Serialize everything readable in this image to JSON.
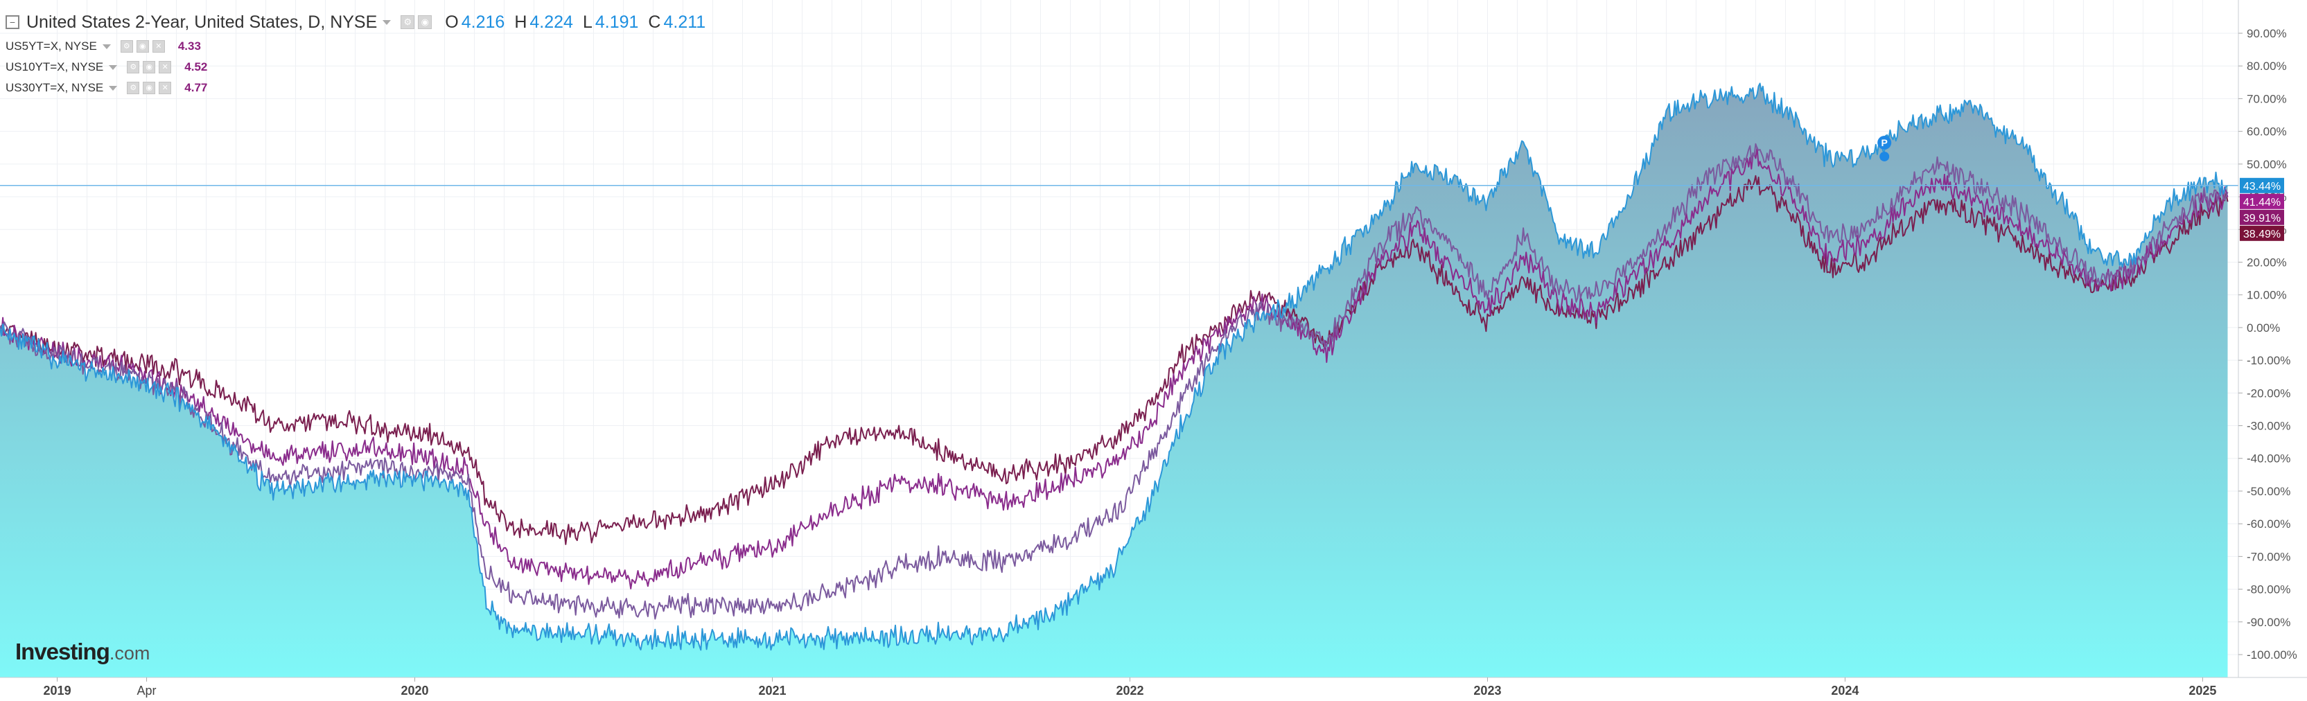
{
  "header": {
    "title": "United States 2-Year, United States, D, NYSE",
    "open_label": "O",
    "open": "4.216",
    "high_label": "H",
    "high": "4.224",
    "low_label": "L",
    "low": "4.191",
    "close_label": "C",
    "close": "4.211"
  },
  "compare": [
    {
      "label": "US5YT=X, NYSE",
      "last": "4.33",
      "color": "#8b1f7c"
    },
    {
      "label": "US10YT=X, NYSE",
      "last": "4.52",
      "color": "#8b1f7c"
    },
    {
      "label": "US30YT=X, NYSE",
      "last": "4.77",
      "color": "#8b1f7c"
    }
  ],
  "brand": {
    "name": "Investing",
    "suffix": ".com"
  },
  "colors": {
    "main_line": "#2c97d8",
    "area_top": "#86a6bd",
    "area_bottom": "#7ff8f8",
    "us5y": "#7b5a9e",
    "us10y": "#8a2c8c",
    "us30y": "#7a1f4f",
    "grid": "#eef0f4",
    "axis_text": "#555555"
  },
  "icons": [
    "collapse-icon",
    "chevron-down-icon",
    "settings-icon",
    "hide-icon",
    "close-icon",
    "pin-marker-icon"
  ],
  "chart_data": {
    "type": "area",
    "ylabel": "",
    "ylim": [
      -105,
      100
    ],
    "yticks": [
      "90.00%",
      "80.00%",
      "70.00%",
      "60.00%",
      "50.00%",
      "40.00%",
      "30.00%",
      "20.00%",
      "10.00%",
      "0.00%",
      "-10.00%",
      "-20.00%",
      "-30.00%",
      "-40.00%",
      "-50.00%",
      "-60.00%",
      "-70.00%",
      "-80.00%",
      "-90.00%",
      "-100.00%"
    ],
    "ytick_values": [
      90,
      80,
      70,
      60,
      50,
      40,
      30,
      20,
      10,
      0,
      -10,
      -20,
      -30,
      -40,
      -50,
      -60,
      -70,
      -80,
      -90,
      -100
    ],
    "xticks": [
      {
        "label": "2019",
        "t": 2019.0
      },
      {
        "label": "Apr",
        "t": 2019.25
      },
      {
        "label": "2020",
        "t": 2020.0
      },
      {
        "label": "2021",
        "t": 2021.0
      },
      {
        "label": "2022",
        "t": 2022.0
      },
      {
        "label": "2023",
        "t": 2023.0
      },
      {
        "label": "2024",
        "t": 2024.0
      },
      {
        "label": "2025",
        "t": 2025.0
      }
    ],
    "xlim": [
      2018.84,
      2025.1
    ],
    "reference_line": 43.44,
    "last_labels": [
      {
        "text": "43.44%",
        "value": 43.44,
        "color": "#1e90d6"
      },
      {
        "text": "41.44%",
        "value": 41.44,
        "color": "#a01e8e"
      },
      {
        "text": "39.91%",
        "value": 39.91,
        "color": "#8c1a6e"
      },
      {
        "text": "38.49%",
        "value": 38.49,
        "color": "#7a1238"
      }
    ],
    "series": [
      {
        "name": "United States 2-Year",
        "style": "area",
        "points": [
          [
            2018.84,
            0
          ],
          [
            2019.0,
            -10
          ],
          [
            2019.2,
            -16
          ],
          [
            2019.35,
            -22
          ],
          [
            2019.5,
            -38
          ],
          [
            2019.6,
            -50
          ],
          [
            2019.75,
            -48
          ],
          [
            2019.9,
            -46
          ],
          [
            2020.05,
            -47
          ],
          [
            2020.15,
            -50
          ],
          [
            2020.2,
            -85
          ],
          [
            2020.27,
            -92
          ],
          [
            2020.45,
            -94
          ],
          [
            2020.6,
            -95
          ],
          [
            2020.8,
            -95
          ],
          [
            2021.0,
            -95
          ],
          [
            2021.2,
            -95
          ],
          [
            2021.5,
            -94
          ],
          [
            2021.65,
            -93
          ],
          [
            2021.8,
            -86
          ],
          [
            2021.95,
            -74
          ],
          [
            2022.05,
            -55
          ],
          [
            2022.15,
            -28
          ],
          [
            2022.25,
            -8
          ],
          [
            2022.35,
            2
          ],
          [
            2022.45,
            8
          ],
          [
            2022.55,
            18
          ],
          [
            2022.7,
            35
          ],
          [
            2022.8,
            50
          ],
          [
            2022.9,
            45
          ],
          [
            2023.0,
            38
          ],
          [
            2023.1,
            58
          ],
          [
            2023.2,
            28
          ],
          [
            2023.3,
            23
          ],
          [
            2023.4,
            40
          ],
          [
            2023.5,
            65
          ],
          [
            2023.6,
            70
          ],
          [
            2023.75,
            72
          ],
          [
            2023.85,
            65
          ],
          [
            2023.95,
            52
          ],
          [
            2024.05,
            52
          ],
          [
            2024.15,
            60
          ],
          [
            2024.25,
            65
          ],
          [
            2024.35,
            68
          ],
          [
            2024.5,
            55
          ],
          [
            2024.6,
            40
          ],
          [
            2024.7,
            22
          ],
          [
            2024.8,
            20
          ],
          [
            2024.9,
            38
          ],
          [
            2025.0,
            45
          ],
          [
            2025.07,
            43.44
          ]
        ]
      },
      {
        "name": "US5YT=X",
        "style": "line",
        "points": [
          [
            2018.84,
            0
          ],
          [
            2019.0,
            -9
          ],
          [
            2019.2,
            -14
          ],
          [
            2019.35,
            -21
          ],
          [
            2019.5,
            -37
          ],
          [
            2019.6,
            -46
          ],
          [
            2019.75,
            -44
          ],
          [
            2019.9,
            -42
          ],
          [
            2020.05,
            -44
          ],
          [
            2020.15,
            -47
          ],
          [
            2020.2,
            -75
          ],
          [
            2020.27,
            -82
          ],
          [
            2020.45,
            -85
          ],
          [
            2020.6,
            -86
          ],
          [
            2020.8,
            -85
          ],
          [
            2021.0,
            -85
          ],
          [
            2021.2,
            -80
          ],
          [
            2021.35,
            -73
          ],
          [
            2021.5,
            -70
          ],
          [
            2021.65,
            -72
          ],
          [
            2021.8,
            -66
          ],
          [
            2021.95,
            -58
          ],
          [
            2022.05,
            -42
          ],
          [
            2022.15,
            -20
          ],
          [
            2022.25,
            -5
          ],
          [
            2022.35,
            5
          ],
          [
            2022.45,
            2
          ],
          [
            2022.55,
            -5
          ],
          [
            2022.7,
            25
          ],
          [
            2022.8,
            35
          ],
          [
            2022.9,
            25
          ],
          [
            2023.0,
            10
          ],
          [
            2023.1,
            28
          ],
          [
            2023.2,
            12
          ],
          [
            2023.3,
            10
          ],
          [
            2023.4,
            20
          ],
          [
            2023.5,
            30
          ],
          [
            2023.6,
            45
          ],
          [
            2023.75,
            55
          ],
          [
            2023.85,
            45
          ],
          [
            2023.95,
            28
          ],
          [
            2024.05,
            30
          ],
          [
            2024.15,
            40
          ],
          [
            2024.25,
            50
          ],
          [
            2024.35,
            45
          ],
          [
            2024.5,
            35
          ],
          [
            2024.6,
            25
          ],
          [
            2024.7,
            15
          ],
          [
            2024.8,
            18
          ],
          [
            2024.9,
            30
          ],
          [
            2025.0,
            40
          ],
          [
            2025.07,
            41.44
          ]
        ]
      },
      {
        "name": "US10YT=X",
        "style": "line",
        "points": [
          [
            2018.84,
            0
          ],
          [
            2019.0,
            -8
          ],
          [
            2019.2,
            -12
          ],
          [
            2019.35,
            -20
          ],
          [
            2019.5,
            -32
          ],
          [
            2019.6,
            -40
          ],
          [
            2019.75,
            -38
          ],
          [
            2019.9,
            -37
          ],
          [
            2020.05,
            -40
          ],
          [
            2020.15,
            -44
          ],
          [
            2020.2,
            -60
          ],
          [
            2020.27,
            -72
          ],
          [
            2020.45,
            -75
          ],
          [
            2020.6,
            -77
          ],
          [
            2020.8,
            -72
          ],
          [
            2021.0,
            -67
          ],
          [
            2021.2,
            -55
          ],
          [
            2021.35,
            -47
          ],
          [
            2021.5,
            -49
          ],
          [
            2021.65,
            -54
          ],
          [
            2021.8,
            -48
          ],
          [
            2021.95,
            -42
          ],
          [
            2022.05,
            -32
          ],
          [
            2022.15,
            -12
          ],
          [
            2022.25,
            -2
          ],
          [
            2022.35,
            8
          ],
          [
            2022.45,
            2
          ],
          [
            2022.55,
            -8
          ],
          [
            2022.7,
            20
          ],
          [
            2022.8,
            30
          ],
          [
            2022.9,
            18
          ],
          [
            2023.0,
            5
          ],
          [
            2023.1,
            22
          ],
          [
            2023.2,
            8
          ],
          [
            2023.3,
            5
          ],
          [
            2023.4,
            15
          ],
          [
            2023.5,
            25
          ],
          [
            2023.6,
            38
          ],
          [
            2023.75,
            52
          ],
          [
            2023.85,
            40
          ],
          [
            2023.95,
            22
          ],
          [
            2024.05,
            25
          ],
          [
            2024.15,
            35
          ],
          [
            2024.25,
            45
          ],
          [
            2024.35,
            40
          ],
          [
            2024.5,
            30
          ],
          [
            2024.6,
            22
          ],
          [
            2024.7,
            13
          ],
          [
            2024.8,
            16
          ],
          [
            2024.9,
            28
          ],
          [
            2025.0,
            38
          ],
          [
            2025.07,
            39.91
          ]
        ]
      },
      {
        "name": "US30YT=X",
        "style": "line",
        "points": [
          [
            2018.84,
            0
          ],
          [
            2019.0,
            -7
          ],
          [
            2019.2,
            -10
          ],
          [
            2019.35,
            -14
          ],
          [
            2019.5,
            -22
          ],
          [
            2019.6,
            -30
          ],
          [
            2019.75,
            -28
          ],
          [
            2019.9,
            -31
          ],
          [
            2020.05,
            -33
          ],
          [
            2020.15,
            -38
          ],
          [
            2020.2,
            -52
          ],
          [
            2020.27,
            -62
          ],
          [
            2020.45,
            -63
          ],
          [
            2020.6,
            -60
          ],
          [
            2020.8,
            -57
          ],
          [
            2021.0,
            -48
          ],
          [
            2021.2,
            -33
          ],
          [
            2021.35,
            -31
          ],
          [
            2021.5,
            -40
          ],
          [
            2021.65,
            -45
          ],
          [
            2021.8,
            -42
          ],
          [
            2021.95,
            -35
          ],
          [
            2022.05,
            -25
          ],
          [
            2022.15,
            -8
          ],
          [
            2022.25,
            0
          ],
          [
            2022.35,
            10
          ],
          [
            2022.45,
            5
          ],
          [
            2022.55,
            -5
          ],
          [
            2022.7,
            18
          ],
          [
            2022.8,
            25
          ],
          [
            2022.9,
            12
          ],
          [
            2023.0,
            2
          ],
          [
            2023.1,
            15
          ],
          [
            2023.2,
            5
          ],
          [
            2023.3,
            3
          ],
          [
            2023.4,
            10
          ],
          [
            2023.5,
            20
          ],
          [
            2023.6,
            30
          ],
          [
            2023.75,
            45
          ],
          [
            2023.85,
            35
          ],
          [
            2023.95,
            18
          ],
          [
            2024.05,
            20
          ],
          [
            2024.15,
            30
          ],
          [
            2024.25,
            38
          ],
          [
            2024.35,
            35
          ],
          [
            2024.5,
            25
          ],
          [
            2024.6,
            18
          ],
          [
            2024.7,
            12
          ],
          [
            2024.8,
            15
          ],
          [
            2024.9,
            25
          ],
          [
            2025.0,
            35
          ],
          [
            2025.07,
            38.49
          ]
        ]
      }
    ]
  }
}
